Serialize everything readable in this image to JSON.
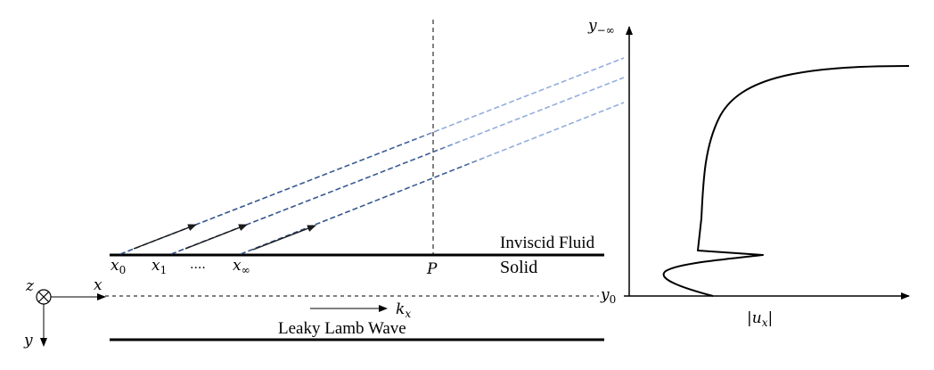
{
  "labels": {
    "fluid": "Inviscid Fluid",
    "solid": "Solid",
    "wave": "Leaky Lamb Wave",
    "x0_base": "x",
    "x0_sub": "0",
    "x1_base": "x",
    "x1_sub": "1",
    "dots": "....",
    "xinf_base": "x",
    "xinf_sub": "∞",
    "point_p": "P",
    "kx_base": "k",
    "kx_sub": "x",
    "y0_base": "y",
    "y0_sub": "0",
    "ytop_base": "y",
    "ytop_sub": "−∞",
    "ux_left": "|",
    "ux_base": "u",
    "ux_sub": "x",
    "ux_right": "|",
    "axis_x": "x",
    "axis_y": "y",
    "axis_z": "z"
  },
  "colors": {
    "line": "#000000",
    "ray_dark": "#2f4f86",
    "ray_light": "#93aedc"
  }
}
